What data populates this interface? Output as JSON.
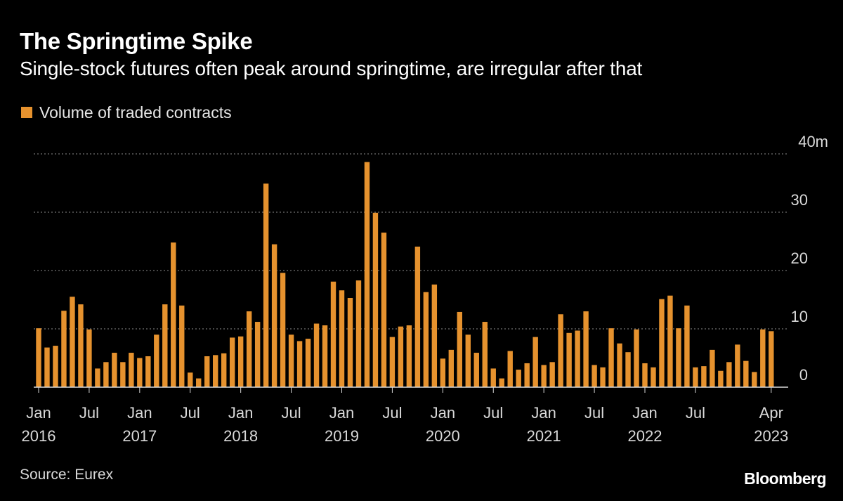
{
  "header": {
    "title": "The Springtime Spike",
    "subtitle": "Single-stock futures often peak around springtime, are irregular after that"
  },
  "legend": {
    "label": "Volume of traded contracts"
  },
  "footer": {
    "source": "Source: Eurex",
    "brand": "Bloomberg"
  },
  "colors": {
    "bar": "#e6922e",
    "grid": "#8c8c8c",
    "axis": "#d9d9d9",
    "background": "#000000"
  },
  "chart_data": {
    "type": "bar",
    "title": "The Springtime Spike",
    "subtitle": "Single-stock futures often peak around springtime, are irregular after that",
    "series": [
      {
        "name": "Volume of traded contracts",
        "unit": "million contracts",
        "start": "2016-01",
        "end": "2023-04",
        "values": [
          10.1,
          6.8,
          7.1,
          13.1,
          15.5,
          14.2,
          9.9,
          3.2,
          4.3,
          5.9,
          4.3,
          5.9,
          5.0,
          5.3,
          9.0,
          14.2,
          24.8,
          14.0,
          2.5,
          1.5,
          5.3,
          5.5,
          5.8,
          8.5,
          8.7,
          13.0,
          11.2,
          34.9,
          24.5,
          19.6,
          9.0,
          7.9,
          8.3,
          10.9,
          10.6,
          18.1,
          16.6,
          15.3,
          18.3,
          38.6,
          29.9,
          26.5,
          8.6,
          10.4,
          10.6,
          24.1,
          16.3,
          17.6,
          4.9,
          6.4,
          12.9,
          9.0,
          5.9,
          11.2,
          3.2,
          1.5,
          6.2,
          3.0,
          4.1,
          8.6,
          3.8,
          4.3,
          12.5,
          9.3,
          9.7,
          13.0,
          3.8,
          3.4,
          10.1,
          7.5,
          6.0,
          9.9,
          4.1,
          3.4,
          15.1,
          15.7,
          10.1,
          14.0,
          3.4,
          3.6,
          6.4,
          2.8,
          4.3,
          7.3,
          4.5,
          2.6,
          9.9,
          9.6
        ]
      }
    ],
    "y_axis": {
      "min": 0,
      "max": 40,
      "ticks": [
        0,
        10,
        20,
        30,
        40
      ],
      "unit_suffix": "m",
      "grid": true,
      "position": "right"
    },
    "x_axis": {
      "tick_labels": [
        {
          "index": 0,
          "month": "Jan",
          "year": "2016"
        },
        {
          "index": 6,
          "month": "Jul",
          "year": ""
        },
        {
          "index": 12,
          "month": "Jan",
          "year": "2017"
        },
        {
          "index": 18,
          "month": "Jul",
          "year": ""
        },
        {
          "index": 24,
          "month": "Jan",
          "year": "2018"
        },
        {
          "index": 30,
          "month": "Jul",
          "year": ""
        },
        {
          "index": 36,
          "month": "Jan",
          "year": "2019"
        },
        {
          "index": 42,
          "month": "Jul",
          "year": ""
        },
        {
          "index": 48,
          "month": "Jan",
          "year": "2020"
        },
        {
          "index": 54,
          "month": "Jul",
          "year": ""
        },
        {
          "index": 60,
          "month": "Jan",
          "year": "2021"
        },
        {
          "index": 66,
          "month": "Jul",
          "year": ""
        },
        {
          "index": 72,
          "month": "Jan",
          "year": "2022"
        },
        {
          "index": 78,
          "month": "Jul",
          "year": ""
        },
        {
          "index": 87,
          "month": "Apr",
          "year": "2023"
        }
      ]
    },
    "legend_position": "top-left"
  }
}
